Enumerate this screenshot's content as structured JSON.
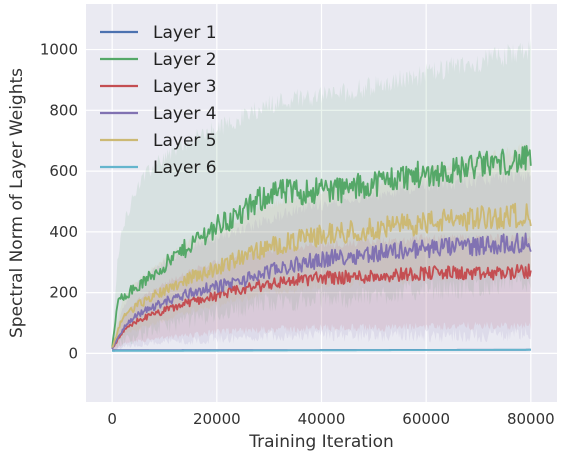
{
  "chart_data": {
    "type": "line",
    "title": "",
    "xlabel": "Training Iteration",
    "ylabel": "Spectral Norm of Layer Weights",
    "xlim": [
      -5000,
      85000
    ],
    "ylim": [
      -160,
      1150
    ],
    "xticks": [
      0,
      20000,
      40000,
      60000,
      80000
    ],
    "yticks": [
      0,
      200,
      400,
      600,
      800,
      1000
    ],
    "xtick_labels": [
      "0",
      "20000",
      "40000",
      "60000",
      "80000"
    ],
    "ytick_labels": [
      "0",
      "200",
      "400",
      "600",
      "800",
      "1000"
    ],
    "grid": true,
    "legend_position": "top-left",
    "background_color": "#eaeaf2",
    "series": [
      {
        "name": "Layer 1",
        "color": "#4c72b0",
        "x": [
          0,
          80000
        ],
        "y": [
          10,
          12
        ],
        "band_low": [
          8,
          9
        ],
        "band_high": [
          12,
          14
        ]
      },
      {
        "name": "Layer 2",
        "color": "#55a868",
        "x": [
          0,
          1000,
          2000,
          5000,
          10000,
          15000,
          20000,
          25000,
          30000,
          35000,
          40000,
          45000,
          50000,
          55000,
          60000,
          65000,
          70000,
          75000,
          80000
        ],
        "y": [
          20,
          160,
          190,
          220,
          290,
          360,
          420,
          460,
          530,
          530,
          540,
          540,
          560,
          580,
          590,
          600,
          620,
          630,
          640
        ],
        "band_low": [
          10,
          30,
          40,
          60,
          90,
          110,
          130,
          150,
          170,
          170,
          180,
          180,
          190,
          200,
          210,
          210,
          220,
          230,
          230
        ],
        "band_high": [
          30,
          300,
          420,
          560,
          650,
          700,
          740,
          780,
          820,
          840,
          850,
          860,
          880,
          900,
          920,
          940,
          960,
          980,
          1000
        ]
      },
      {
        "name": "Layer 3",
        "color": "#c44e52",
        "x": [
          0,
          2000,
          5000,
          10000,
          15000,
          20000,
          25000,
          30000,
          35000,
          40000,
          45000,
          50000,
          55000,
          60000,
          65000,
          70000,
          75000,
          80000
        ],
        "y": [
          15,
          70,
          110,
          140,
          170,
          190,
          210,
          230,
          240,
          250,
          250,
          255,
          260,
          265,
          265,
          260,
          265,
          270
        ],
        "band_low": [
          5,
          30,
          40,
          50,
          60,
          70,
          75,
          80,
          80,
          85,
          85,
          85,
          85,
          90,
          90,
          90,
          90,
          90
        ],
        "band_high": [
          25,
          120,
          180,
          230,
          270,
          300,
          320,
          340,
          350,
          360,
          360,
          370,
          370,
          380,
          380,
          380,
          380,
          380
        ]
      },
      {
        "name": "Layer 4",
        "color": "#8172b2",
        "x": [
          0,
          2000,
          5000,
          10000,
          15000,
          20000,
          25000,
          30000,
          35000,
          40000,
          45000,
          50000,
          55000,
          60000,
          65000,
          70000,
          75000,
          80000
        ],
        "y": [
          15,
          80,
          130,
          170,
          200,
          220,
          240,
          270,
          290,
          310,
          320,
          330,
          340,
          345,
          350,
          355,
          360,
          365
        ],
        "band_low": [
          5,
          20,
          30,
          40,
          40,
          50,
          50,
          60,
          60,
          60,
          60,
          60,
          60,
          60,
          60,
          60,
          60,
          60
        ],
        "band_high": [
          25,
          150,
          230,
          300,
          350,
          380,
          410,
          440,
          470,
          490,
          510,
          520,
          540,
          550,
          560,
          570,
          580,
          590
        ]
      },
      {
        "name": "Layer 5",
        "color": "#ccb974",
        "x": [
          0,
          2000,
          5000,
          10000,
          15000,
          20000,
          25000,
          30000,
          35000,
          40000,
          45000,
          50000,
          55000,
          60000,
          65000,
          70000,
          75000,
          80000
        ],
        "y": [
          18,
          120,
          160,
          210,
          250,
          280,
          320,
          350,
          370,
          390,
          400,
          410,
          420,
          430,
          440,
          445,
          450,
          460
        ],
        "band_low": [
          8,
          60,
          80,
          110,
          140,
          160,
          180,
          200,
          210,
          220,
          230,
          240,
          240,
          250,
          250,
          260,
          260,
          270
        ],
        "band_high": [
          28,
          180,
          240,
          310,
          370,
          410,
          450,
          490,
          510,
          530,
          550,
          560,
          580,
          600,
          620,
          640,
          660,
          680
        ]
      },
      {
        "name": "Layer 6",
        "color": "#64b5cd",
        "x": [
          0,
          80000
        ],
        "y": [
          8,
          12
        ],
        "band_low": [
          6,
          9
        ],
        "band_high": [
          10,
          14
        ]
      }
    ]
  }
}
